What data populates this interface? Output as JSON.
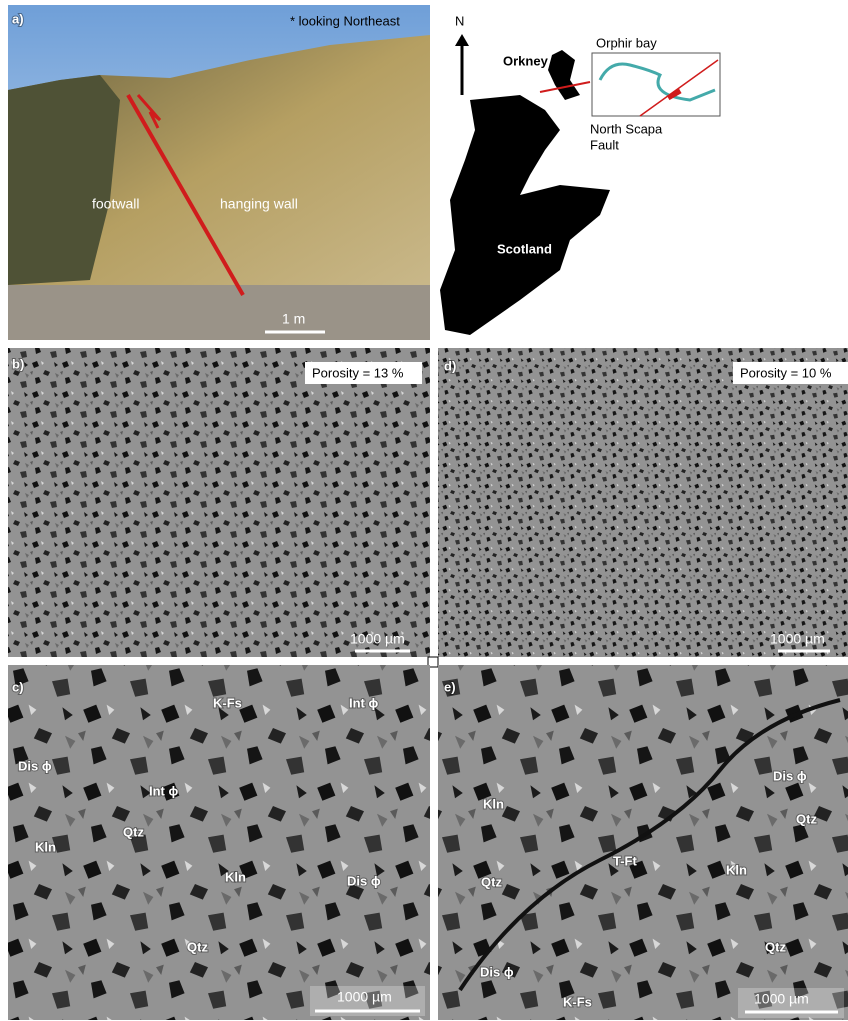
{
  "panel_a": {
    "label": "a)",
    "note": "* looking Northeast",
    "annotations": [
      "footwall",
      "hanging wall"
    ],
    "scale_bar": "1 m"
  },
  "map": {
    "north": "N",
    "places": [
      "Orkney",
      "Orphir bay",
      "Scotland"
    ],
    "fault": [
      "North Scapa",
      "Fault"
    ]
  },
  "panel_b": {
    "label": "b)",
    "porosity": "Porosity = 13 %",
    "scale_bar": "1000 µm"
  },
  "panel_d": {
    "label": "d)",
    "porosity": "Porosity = 10 %",
    "scale_bar": "1000 µm"
  },
  "panel_c": {
    "label": "c)",
    "annotations": [
      "K-Fs",
      "Int ϕ",
      "Dis ϕ",
      "Int ϕ",
      "Kln",
      "Qtz",
      "Kln",
      "Dis ϕ",
      "Qtz"
    ],
    "scale_bar": "1000 µm"
  },
  "panel_e": {
    "label": "e)",
    "annotations": [
      "Dis ϕ",
      "Kln",
      "Qtz",
      "T-Ft",
      "Qtz",
      "Kln",
      "Qtz",
      "Dis ϕ",
      "K-Fs"
    ],
    "scale_bar": "1000 µm"
  }
}
